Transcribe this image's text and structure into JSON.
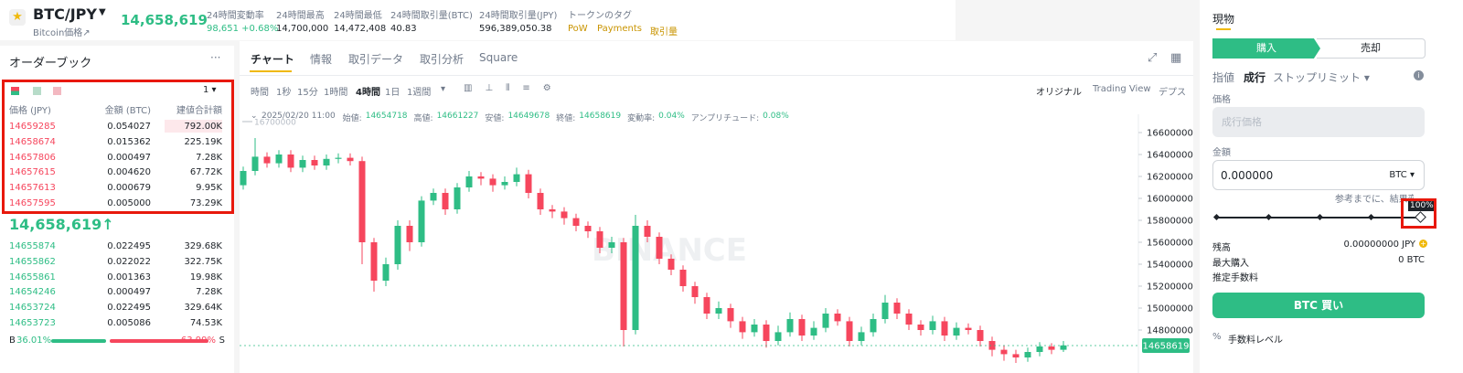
{
  "header": {
    "pair": "BTC/JPY",
    "subtitle": "Bitcoin価格↗",
    "price": "14,658,619",
    "stats": [
      {
        "label": "24時間変動率",
        "value": "98,651 +0.68%"
      },
      {
        "label": "24時間最高",
        "value": "14,700,000"
      },
      {
        "label": "24時間最低",
        "value": "14,472,408"
      },
      {
        "label": "24時間取引量(BTC)",
        "value": "40.83"
      },
      {
        "label": "24時間取引量(JPY)",
        "value": "596,389,050.38"
      }
    ],
    "tags_label": "トークンのタグ",
    "tags": [
      "PoW",
      "Payments",
      "取引量"
    ]
  },
  "order_book": {
    "title": "オーダーブック",
    "more": "···",
    "precision": "1 ▾",
    "columns": [
      "価格 (JPY)",
      "金額 (BTC)",
      "建値合計額"
    ],
    "asks": [
      [
        "14659285",
        "0.054027",
        "792.00K"
      ],
      [
        "14658674",
        "0.015362",
        "225.19K"
      ],
      [
        "14657806",
        "0.000497",
        "7.28K"
      ],
      [
        "14657615",
        "0.004620",
        "67.72K"
      ],
      [
        "14657613",
        "0.000679",
        "9.95K"
      ],
      [
        "14657595",
        "0.005000",
        "73.29K"
      ]
    ],
    "mid_price": "14,658,619↑",
    "bids": [
      [
        "14655874",
        "0.022495",
        "329.68K"
      ],
      [
        "14655862",
        "0.022022",
        "322.75K"
      ],
      [
        "14655861",
        "0.001363",
        "19.98K"
      ],
      [
        "14654246",
        "0.000497",
        "7.28K"
      ],
      [
        "14653724",
        "0.022495",
        "329.64K"
      ],
      [
        "14653723",
        "0.005086",
        "74.53K"
      ]
    ],
    "buy_label": "B",
    "buy_ratio": 36.01,
    "buy_ratio_label": "36.01%",
    "sell_label": "S",
    "sell_ratio": 63.99,
    "sell_ratio_label": "63.99%"
  },
  "chart_panel": {
    "tabs": [
      "チャート",
      "情報",
      "取引データ",
      "取引分析",
      "Square"
    ],
    "intervals": [
      "時間",
      "1秒",
      "15分",
      "1時間",
      "4時間",
      "1日",
      "1週間"
    ],
    "views": [
      "オリジナル",
      "Trading View",
      "デプス"
    ],
    "info_time": "2025/02/20 11:00",
    "info": [
      {
        "label": "始値:",
        "value": "14654718"
      },
      {
        "label": "高値:",
        "value": "14661227"
      },
      {
        "label": "安値:",
        "value": "14649678"
      },
      {
        "label": "終値:",
        "value": "14658619"
      },
      {
        "label": "変動率:",
        "value": "0.04%"
      },
      {
        "label": "アンプリチュード:",
        "value": "0.08%"
      }
    ],
    "watermark": "BINANCE"
  },
  "chart_data": {
    "type": "candlestick",
    "up_color": "#2ebd85",
    "down_color": "#f6465d",
    "ylim": [
      14475000,
      16725000
    ],
    "yticks": [
      14800000,
      15000000,
      15200000,
      15400000,
      15600000,
      15800000,
      16000000,
      16200000,
      16400000,
      16600000
    ],
    "high_marker": 16700000,
    "last_price": 14658619,
    "open": [
      16120000,
      16250000,
      16380000,
      16320000,
      16400000,
      16280000,
      16350000,
      16300000,
      16360000,
      16370000,
      16340000,
      15600000,
      15250000,
      15400000,
      15750000,
      15600000,
      15980000,
      16050000,
      15900000,
      16100000,
      16200000,
      16180000,
      16120000,
      16150000,
      16220000,
      16050000,
      15900000,
      15880000,
      15820000,
      15750000,
      15700000,
      15550000,
      15600000,
      14800000,
      15750000,
      15650000,
      15450000,
      15350000,
      15200000,
      15100000,
      14950000,
      15000000,
      14880000,
      14780000,
      14850000,
      14700000,
      14780000,
      14900000,
      14750000,
      14820000,
      14950000,
      14880000,
      14700000,
      14780000,
      14900000,
      15050000,
      14950000,
      14850000,
      14800000,
      14880000,
      14750000,
      14820000,
      14800000,
      14700000,
      14620000,
      14580000,
      14550000,
      14600000,
      14650000,
      14620000
    ],
    "high": [
      16290000,
      16550000,
      16420000,
      16440000,
      16440000,
      16390000,
      16390000,
      16400000,
      16410000,
      16410000,
      16380000,
      15640000,
      15460000,
      15800000,
      15800000,
      16020000,
      16090000,
      16090000,
      16140000,
      16250000,
      16240000,
      16220000,
      16200000,
      16280000,
      16260000,
      16090000,
      15940000,
      15920000,
      15860000,
      15790000,
      15740000,
      15650000,
      15640000,
      15850000,
      15800000,
      15690000,
      15490000,
      15390000,
      15240000,
      15140000,
      15060000,
      15040000,
      14920000,
      14900000,
      14890000,
      14840000,
      14960000,
      14940000,
      14880000,
      15000000,
      14990000,
      14920000,
      14830000,
      14950000,
      15120000,
      15090000,
      14990000,
      14890000,
      14930000,
      14920000,
      14870000,
      14860000,
      14840000,
      14740000,
      14660000,
      14620000,
      14640000,
      14690000,
      14680000,
      14700000
    ],
    "low": [
      16080000,
      16210000,
      16280000,
      16280000,
      16240000,
      16240000,
      16260000,
      16260000,
      16320000,
      16300000,
      15400000,
      15150000,
      15200000,
      15350000,
      15520000,
      15560000,
      15940000,
      15850000,
      15860000,
      16060000,
      16120000,
      16060000,
      16080000,
      16110000,
      16000000,
      15850000,
      15820000,
      15760000,
      15700000,
      15640000,
      15500000,
      15500000,
      14650000,
      14760000,
      15600000,
      15400000,
      15300000,
      15150000,
      15040000,
      14900000,
      14900000,
      14820000,
      14720000,
      14740000,
      14640000,
      14660000,
      14740000,
      14700000,
      14710000,
      14780000,
      14840000,
      14650000,
      14660000,
      14740000,
      14860000,
      14900000,
      14800000,
      14750000,
      14760000,
      14700000,
      14710000,
      14760000,
      14650000,
      14560000,
      14520000,
      14500000,
      14510000,
      14560000,
      14580000,
      14600000
    ],
    "close": [
      16250000,
      16380000,
      16320000,
      16400000,
      16280000,
      16350000,
      16300000,
      16360000,
      16370000,
      16340000,
      15600000,
      15250000,
      15400000,
      15750000,
      15600000,
      15980000,
      16050000,
      15900000,
      16100000,
      16200000,
      16180000,
      16120000,
      16150000,
      16220000,
      16050000,
      15900000,
      15880000,
      15820000,
      15750000,
      15700000,
      15550000,
      15600000,
      14800000,
      15750000,
      15650000,
      15450000,
      15350000,
      15200000,
      15100000,
      14950000,
      15000000,
      14880000,
      14780000,
      14850000,
      14700000,
      14780000,
      14900000,
      14750000,
      14820000,
      14950000,
      14880000,
      14700000,
      14780000,
      14900000,
      15050000,
      14950000,
      14850000,
      14800000,
      14880000,
      14750000,
      14820000,
      14800000,
      14700000,
      14620000,
      14580000,
      14550000,
      14600000,
      14650000,
      14620000,
      14660000
    ]
  },
  "trade_panel": {
    "title": "現物",
    "buy_tab": "購入",
    "sell_tab": "売却",
    "order_types": [
      "指値",
      "成行",
      "ストップリミット ▾"
    ],
    "info_icon": "i",
    "price_label": "価格",
    "price_placeholder": "成行価格",
    "amount_label": "金額",
    "amount_value": "0.000000",
    "amount_unit": "BTC ▾",
    "hint": "参考までに、結果変動",
    "slider_tooltip": "100%",
    "balance_label": "残高",
    "balance_value": "0.00000000 JPY",
    "max_buy_label": "最大購入",
    "max_buy_value": "0 BTC",
    "fee_label": "推定手数料",
    "buy_button": "BTC 買い",
    "fee_level": "手数料レベル"
  }
}
